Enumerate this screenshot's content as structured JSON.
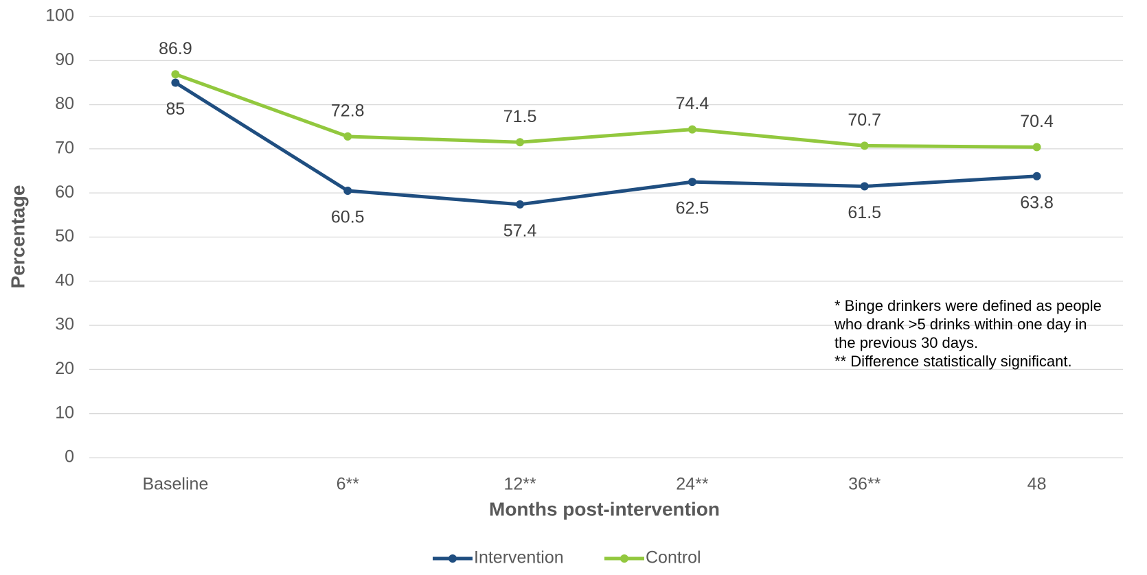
{
  "chart_data": {
    "type": "line",
    "xlabel": "Months post-intervention",
    "ylabel": "Percentage",
    "categories": [
      "Baseline",
      "6**",
      "12**",
      "24**",
      "36**",
      "48"
    ],
    "series": [
      {
        "name": "Intervention",
        "color": "#1f4e80",
        "values": [
          85,
          60.5,
          57.4,
          62.5,
          61.5,
          63.8
        ]
      },
      {
        "name": "Control",
        "color": "#92c83e",
        "values": [
          86.9,
          72.8,
          71.5,
          74.4,
          70.7,
          70.4
        ]
      }
    ],
    "ylim": [
      0,
      100
    ],
    "yticks": [
      0,
      10,
      20,
      30,
      40,
      50,
      60,
      70,
      80,
      90,
      100
    ],
    "grid": true,
    "legend": "bottom",
    "annotations": [
      "* Binge drinkers were defined as people",
      "who drank >5 drinks within one day in",
      "the previous 30 days.",
      "** Difference statistically significant."
    ]
  }
}
